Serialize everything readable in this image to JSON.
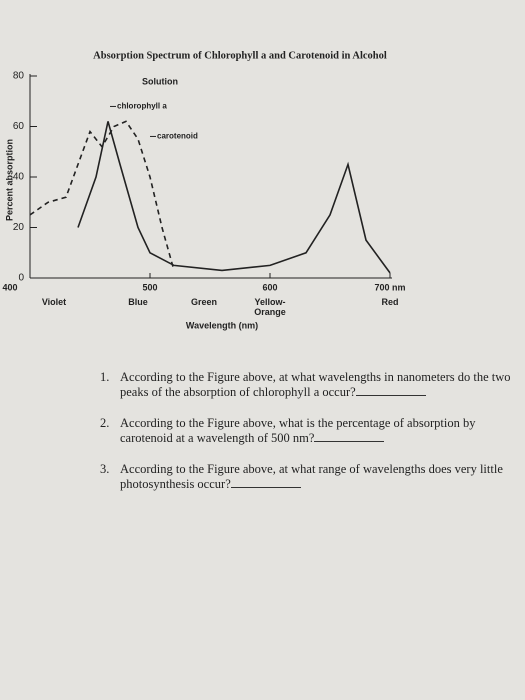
{
  "chart_data": {
    "type": "line",
    "title": "Absorption Spectrum of Chlorophyll a and Carotenoid in Alcohol",
    "subtitle": "Solution",
    "x_label": "Wavelength (nm)",
    "y_label": "Percent absorption",
    "xlim": [
      400,
      700
    ],
    "xticks": [
      400,
      500,
      600,
      {
        "value": 700,
        "label": "700 nm"
      }
    ],
    "ylim": [
      0,
      80
    ],
    "yticks": [
      0,
      20,
      40,
      60,
      80
    ],
    "band_labels": [
      {
        "value": 420,
        "label": "Violet"
      },
      {
        "value": 490,
        "label": "Blue"
      },
      {
        "value": 545,
        "label": "Green"
      },
      {
        "value": 600,
        "label": "Yellow-Orange"
      },
      {
        "value": 700,
        "label": "Red"
      }
    ],
    "series": [
      {
        "name": "chlorophyll a",
        "color": "#222222",
        "dash": false,
        "x": [
          440,
          455,
          465,
          475,
          490,
          500,
          520,
          560,
          600,
          630,
          650,
          665,
          680,
          700
        ],
        "values": [
          20,
          40,
          62,
          45,
          20,
          10,
          5,
          3,
          5,
          10,
          25,
          45,
          15,
          2
        ]
      },
      {
        "name": "carotenoid",
        "color": "#222222",
        "dash": true,
        "x": [
          400,
          415,
          430,
          440,
          450,
          460,
          470,
          480,
          490,
          500,
          510,
          520
        ],
        "values": [
          25,
          30,
          32,
          45,
          58,
          52,
          60,
          62,
          55,
          40,
          20,
          3
        ]
      }
    ]
  },
  "questions": [
    {
      "number": "1.",
      "text": "According to the Figure above, at what wavelengths in nanometers do the two peaks of the absorption of chlorophyll a occur?"
    },
    {
      "number": "2.",
      "text": "According to the Figure above, what is the percentage of absorption by carotenoid at a wavelength of 500 nm?"
    },
    {
      "number": "3.",
      "text": "According to the Figure above, at what range of wavelengths does very little photosynthesis occur?"
    }
  ]
}
